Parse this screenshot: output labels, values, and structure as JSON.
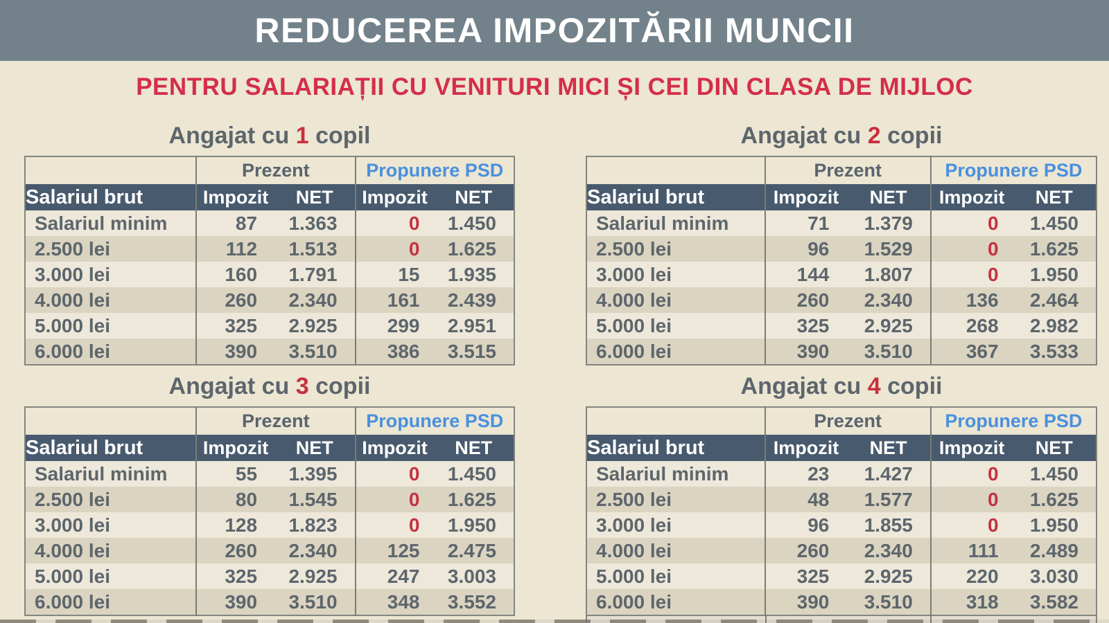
{
  "header": {
    "title": "REDUCEREA IMPOZITĂRII MUNCII"
  },
  "subtitle": "PENTRU SALARIAȚII CU VENITURI MICI ȘI CEI DIN CLASA DE MIJLOC",
  "labels": {
    "present_group": "Prezent",
    "psd_group": "Propunere PSD",
    "salary_column": "Salariul brut",
    "tax_column": "Impozit",
    "net_column": "NET"
  },
  "tables": [
    {
      "title_prefix": "Angajat cu ",
      "title_number": "1",
      "title_suffix": " copil",
      "rows": [
        {
          "salary": "Salariul minim",
          "present_tax": "87",
          "present_net": "1.363",
          "psd_tax": "0",
          "psd_net": "1.450"
        },
        {
          "salary": "2.500 lei",
          "present_tax": "112",
          "present_net": "1.513",
          "psd_tax": "0",
          "psd_net": "1.625"
        },
        {
          "salary": "3.000 lei",
          "present_tax": "160",
          "present_net": "1.791",
          "psd_tax": "15",
          "psd_net": "1.935"
        },
        {
          "salary": "4.000 lei",
          "present_tax": "260",
          "present_net": "2.340",
          "psd_tax": "161",
          "psd_net": "2.439"
        },
        {
          "salary": "5.000 lei",
          "present_tax": "325",
          "present_net": "2.925",
          "psd_tax": "299",
          "psd_net": "2.951"
        },
        {
          "salary": "6.000 lei",
          "present_tax": "390",
          "present_net": "3.510",
          "psd_tax": "386",
          "psd_net": "3.515"
        }
      ]
    },
    {
      "title_prefix": "Angajat cu ",
      "title_number": "2",
      "title_suffix": " copii",
      "rows": [
        {
          "salary": "Salariul minim",
          "present_tax": "71",
          "present_net": "1.379",
          "psd_tax": "0",
          "psd_net": "1.450"
        },
        {
          "salary": "2.500 lei",
          "present_tax": "96",
          "present_net": "1.529",
          "psd_tax": "0",
          "psd_net": "1.625"
        },
        {
          "salary": "3.000 lei",
          "present_tax": "144",
          "present_net": "1.807",
          "psd_tax": "0",
          "psd_net": "1.950"
        },
        {
          "salary": "4.000 lei",
          "present_tax": "260",
          "present_net": "2.340",
          "psd_tax": "136",
          "psd_net": "2.464"
        },
        {
          "salary": "5.000 lei",
          "present_tax": "325",
          "present_net": "2.925",
          "psd_tax": "268",
          "psd_net": "2.982"
        },
        {
          "salary": "6.000 lei",
          "present_tax": "390",
          "present_net": "3.510",
          "psd_tax": "367",
          "psd_net": "3.533"
        }
      ]
    },
    {
      "title_prefix": "Angajat cu ",
      "title_number": "3",
      "title_suffix": " copii",
      "rows": [
        {
          "salary": "Salariul minim",
          "present_tax": "55",
          "present_net": "1.395",
          "psd_tax": "0",
          "psd_net": "1.450"
        },
        {
          "salary": "2.500 lei",
          "present_tax": "80",
          "present_net": "1.545",
          "psd_tax": "0",
          "psd_net": "1.625"
        },
        {
          "salary": "3.000 lei",
          "present_tax": "128",
          "present_net": "1.823",
          "psd_tax": "0",
          "psd_net": "1.950"
        },
        {
          "salary": "4.000 lei",
          "present_tax": "260",
          "present_net": "2.340",
          "psd_tax": "125",
          "psd_net": "2.475"
        },
        {
          "salary": "5.000 lei",
          "present_tax": "325",
          "present_net": "2.925",
          "psd_tax": "247",
          "psd_net": "3.003"
        },
        {
          "salary": "6.000 lei",
          "present_tax": "390",
          "present_net": "3.510",
          "psd_tax": "348",
          "psd_net": "3.552"
        }
      ]
    },
    {
      "title_prefix": "Angajat cu ",
      "title_number": "4",
      "title_suffix": " copii",
      "rows": [
        {
          "salary": "Salariul minim",
          "present_tax": "23",
          "present_net": "1.427",
          "psd_tax": "0",
          "psd_net": "1.450"
        },
        {
          "salary": "2.500 lei",
          "present_tax": "48",
          "present_net": "1.577",
          "psd_tax": "0",
          "psd_net": "1.625"
        },
        {
          "salary": "3.000 lei",
          "present_tax": "96",
          "present_net": "1.855",
          "psd_tax": "0",
          "psd_net": "1.950"
        },
        {
          "salary": "4.000 lei",
          "present_tax": "260",
          "present_net": "2.340",
          "psd_tax": "111",
          "psd_net": "2.489"
        },
        {
          "salary": "5.000 lei",
          "present_tax": "325",
          "present_net": "2.925",
          "psd_tax": "220",
          "psd_net": "3.030"
        },
        {
          "salary": "6.000 lei",
          "present_tax": "390",
          "present_net": "3.510",
          "psd_tax": "318",
          "psd_net": "3.582"
        }
      ]
    }
  ],
  "colors": {
    "top_bar": "#73828a",
    "background": "#ece6d3",
    "title_text": "#ffffff",
    "subtitle_red": "#d42e49",
    "accent_red": "#c9303f",
    "zero_red": "#c43240",
    "psd_blue": "#4a90dd",
    "table_header_bg": "#485a6d",
    "table_header_text": "#ffffff",
    "body_text": "#5d666c",
    "row_light": "#eee8da",
    "row_dark": "#dbd4c1",
    "table_border": "#83867e"
  }
}
